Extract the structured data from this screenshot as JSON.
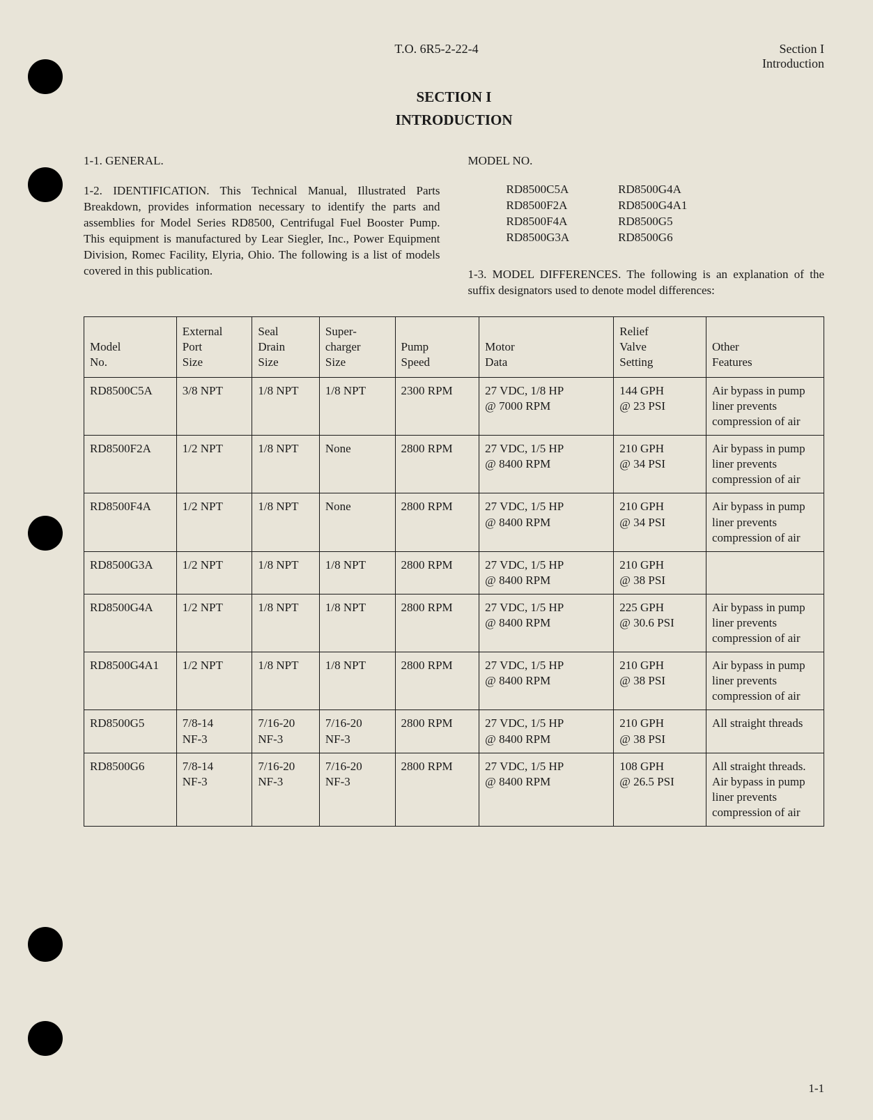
{
  "header": {
    "doc_number": "T.O. 6R5-2-22-4",
    "section_label": "Section I",
    "section_name": "Introduction"
  },
  "title": {
    "section": "SECTION I",
    "name": "INTRODUCTION"
  },
  "paragraphs": {
    "general_label": "1-1. GENERAL.",
    "identification": "1-2. IDENTIFICATION. This Technical Manual, Illustrated Parts Breakdown, provides information necessary to identify the parts and assemblies for Model Series RD8500, Centrifugal Fuel Booster Pump. This equipment is manufactured by Lear Siegler, Inc., Power Equipment Division, Romec Facility, Elyria, Ohio. The following is a list of models covered in this publication.",
    "model_no_label": "MODEL NO.",
    "model_differences": "1-3. MODEL DIFFERENCES. The following is an explanation of the suffix designators used to denote model differences:"
  },
  "model_list": {
    "col1": [
      "RD8500C5A",
      "RD8500F2A",
      "RD8500F4A",
      "RD8500G3A"
    ],
    "col2": [
      "RD8500G4A",
      "RD8500G4A1",
      "RD8500G5",
      "RD8500G6"
    ]
  },
  "table": {
    "columns": [
      "Model\nNo.",
      "External\nPort\nSize",
      "Seal\nDrain\nSize",
      "Super-\ncharger\nSize",
      "Pump\nSpeed",
      "Motor\nData",
      "Relief\nValve\nSetting",
      "Other\nFeatures"
    ],
    "rows": [
      {
        "model": "RD8500C5A",
        "port": "3/8 NPT",
        "seal": "1/8 NPT",
        "super": "1/8 NPT",
        "speed": "2300 RPM",
        "motor": "27 VDC, 1/8 HP\n@ 7000 RPM",
        "relief": "144 GPH\n@ 23 PSI",
        "other": "Air bypass in pump liner prevents compression of air"
      },
      {
        "model": "RD8500F2A",
        "port": "1/2 NPT",
        "seal": "1/8 NPT",
        "super": "None",
        "speed": "2800 RPM",
        "motor": "27 VDC, 1/5 HP\n@ 8400 RPM",
        "relief": "210 GPH\n@ 34 PSI",
        "other": "Air bypass in pump liner prevents compression of air"
      },
      {
        "model": "RD8500F4A",
        "port": "1/2 NPT",
        "seal": "1/8 NPT",
        "super": "None",
        "speed": "2800 RPM",
        "motor": "27 VDC, 1/5 HP\n@ 8400 RPM",
        "relief": "210 GPH\n@ 34 PSI",
        "other": "Air bypass in pump liner prevents compression of air"
      },
      {
        "model": "RD8500G3A",
        "port": "1/2 NPT",
        "seal": "1/8 NPT",
        "super": "1/8 NPT",
        "speed": "2800 RPM",
        "motor": "27 VDC, 1/5 HP\n@ 8400 RPM",
        "relief": "210 GPH\n@ 38 PSI",
        "other": ""
      },
      {
        "model": "RD8500G4A",
        "port": "1/2 NPT",
        "seal": "1/8 NPT",
        "super": "1/8 NPT",
        "speed": "2800 RPM",
        "motor": "27 VDC, 1/5 HP\n@ 8400 RPM",
        "relief": "225 GPH\n@ 30.6 PSI",
        "other": "Air bypass in pump liner prevents compression of air"
      },
      {
        "model": "RD8500G4A1",
        "port": "1/2 NPT",
        "seal": "1/8 NPT",
        "super": "1/8 NPT",
        "speed": "2800 RPM",
        "motor": "27 VDC, 1/5 HP\n@ 8400 RPM",
        "relief": "210 GPH\n@ 38 PSI",
        "other": "Air bypass in pump liner prevents compression of air"
      },
      {
        "model": "RD8500G5",
        "port": "7/8-14\nNF-3",
        "seal": "7/16-20\nNF-3",
        "super": "7/16-20\nNF-3",
        "speed": "2800 RPM",
        "motor": "27 VDC, 1/5 HP\n@ 8400 RPM",
        "relief": "210 GPH\n@ 38 PSI",
        "other": "All straight threads"
      },
      {
        "model": "RD8500G6",
        "port": "7/8-14\nNF-3",
        "seal": "7/16-20\nNF-3",
        "super": "7/16-20\nNF-3",
        "speed": "2800 RPM",
        "motor": "27 VDC, 1/5 HP\n@ 8400 RPM",
        "relief": "108 GPH\n@ 26.5 PSI",
        "other": "All straight threads. Air bypass in pump liner prevents compression of air"
      }
    ]
  },
  "page_number": "1-1",
  "punch_holes": [
    85,
    240,
    740,
    1330,
    1465
  ],
  "colors": {
    "background": "#e8e4d8",
    "text": "#1a1a1a",
    "border": "#1a1a1a",
    "hole": "#000000"
  }
}
